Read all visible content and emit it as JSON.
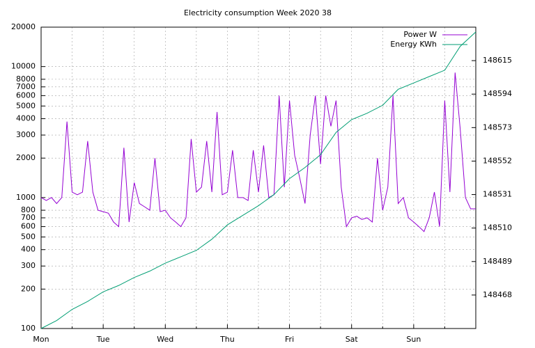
{
  "chart_data": {
    "type": "line",
    "title": "Electricity consumption Week 2020 38",
    "xlim": [
      0,
      7
    ],
    "xticks": [
      {
        "value": 0,
        "label": "Mon"
      },
      {
        "value": 1,
        "label": "Tue"
      },
      {
        "value": 2,
        "label": "Wed"
      },
      {
        "value": 3,
        "label": "Thu"
      },
      {
        "value": 4,
        "label": "Fri"
      },
      {
        "value": 5,
        "label": "Sat"
      },
      {
        "value": 6,
        "label": "Sun"
      }
    ],
    "xminorticks": [
      0.5,
      1.5,
      2.5,
      3.5,
      4.5,
      5.5,
      6.5
    ],
    "ylim": [
      100,
      20000
    ],
    "ylog": true,
    "yticks": [
      100,
      200,
      300,
      400,
      500,
      600,
      700,
      800,
      1000,
      2000,
      3000,
      4000,
      5000,
      6000,
      7000,
      8000,
      10000,
      20000
    ],
    "y2lim": [
      148447,
      148636
    ],
    "y2ticks": [
      148468,
      148489,
      148510,
      148531,
      148552,
      148573,
      148594,
      148615
    ],
    "grid": true,
    "legend": "top-right",
    "series": [
      {
        "name": "Power W",
        "color": "#9400d3",
        "x": [
          0,
          0.0833,
          0.1667,
          0.25,
          0.3333,
          0.4167,
          0.5,
          0.5833,
          0.6667,
          0.75,
          0.8333,
          0.9167,
          1,
          1.0833,
          1.1667,
          1.25,
          1.3333,
          1.4167,
          1.5,
          1.5833,
          1.6667,
          1.75,
          1.8333,
          1.9167,
          2,
          2.0833,
          2.1667,
          2.25,
          2.3333,
          2.4167,
          2.5,
          2.5833,
          2.6667,
          2.75,
          2.8333,
          2.9167,
          3,
          3.0833,
          3.1667,
          3.25,
          3.3333,
          3.4167,
          3.5,
          3.5833,
          3.6667,
          3.75,
          3.8333,
          3.9167,
          4,
          4.0833,
          4.1667,
          4.25,
          4.3333,
          4.4167,
          4.5,
          4.5833,
          4.6667,
          4.75,
          4.8333,
          4.9167,
          5,
          5.0833,
          5.1667,
          5.25,
          5.3333,
          5.4167,
          5.5,
          5.5833,
          5.6667,
          5.75,
          5.8333,
          5.9167,
          6,
          6.0833,
          6.1667,
          6.25,
          6.3333,
          6.4167,
          6.5,
          6.5833,
          6.6667,
          6.75,
          6.8333,
          6.9167,
          7
        ],
        "values": [
          1000,
          950,
          1000,
          900,
          1000,
          3800,
          1100,
          1050,
          1100,
          2700,
          1100,
          800,
          780,
          760,
          650,
          600,
          2400,
          650,
          1300,
          900,
          850,
          800,
          2000,
          780,
          800,
          700,
          650,
          600,
          700,
          2800,
          1100,
          1200,
          2700,
          1100,
          4500,
          1050,
          1100,
          2300,
          1000,
          1000,
          950,
          2300,
          1100,
          2500,
          1000,
          1050,
          6000,
          1200,
          5500,
          2100,
          1400,
          900,
          3000,
          6000,
          1800,
          6000,
          3500,
          5500,
          1200,
          600,
          700,
          720,
          680,
          700,
          650,
          2000,
          800,
          1200,
          6000,
          900,
          1000,
          700,
          650,
          600,
          550,
          700,
          1100,
          600,
          5500,
          1100,
          9000,
          3300,
          1000,
          820,
          820
        ]
      },
      {
        "name": "Energy KWh",
        "color": "#009e73",
        "axis": "y2",
        "x": [
          0,
          0.25,
          0.5,
          0.75,
          1,
          1.25,
          1.5,
          1.75,
          2,
          2.25,
          2.5,
          2.75,
          3,
          3.25,
          3.5,
          3.75,
          4,
          4.25,
          4.5,
          4.75,
          5,
          5.25,
          5.5,
          5.75,
          6,
          6.25,
          6.5,
          6.75,
          7
        ],
        "values": [
          148447,
          148452,
          148459,
          148464,
          148470,
          148474,
          148479,
          148483,
          148488,
          148492,
          148496,
          148503,
          148512,
          148518,
          148524,
          148531,
          148541,
          148548,
          148556,
          148570,
          148578,
          148582,
          148587,
          148597,
          148601,
          148605,
          148609,
          148624,
          148633
        ]
      }
    ]
  }
}
